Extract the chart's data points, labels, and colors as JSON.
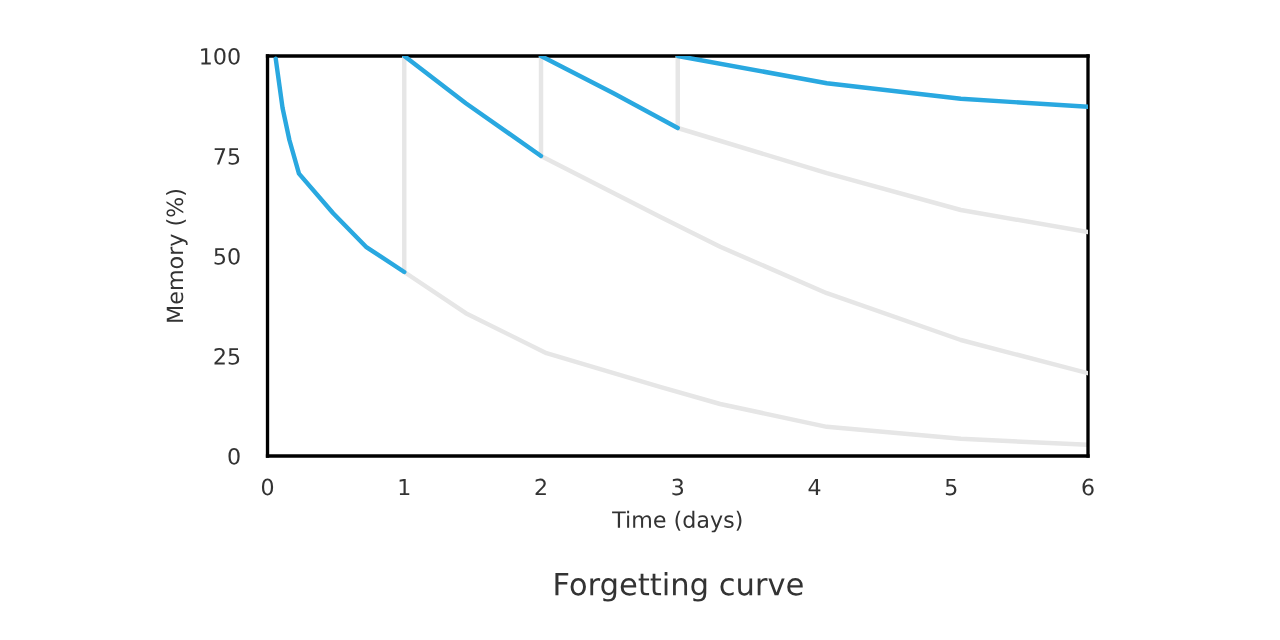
{
  "chart_data": {
    "type": "line",
    "title": "Forgetting curve",
    "xlabel": "Time (days)",
    "ylabel": "Memory (%)",
    "xlim": [
      0,
      6
    ],
    "xticks": [
      0,
      1,
      2,
      3,
      4,
      5,
      6
    ],
    "ylim": [
      0,
      100
    ],
    "yticks": [
      0,
      25,
      50,
      75,
      100
    ],
    "grid": false,
    "marker": "none",
    "line_style": "solid",
    "series": [
      {
        "color": "#e6e6e6",
        "x": [
          1,
          1.45,
          2.04,
          2.87,
          3.31,
          4.09,
          5.07,
          6
        ],
        "values": [
          46,
          35.7,
          25.7,
          17.3,
          13,
          7.3,
          4.3,
          2.8
        ]
      },
      {
        "color": "#e6e6e6",
        "x": [
          2,
          2.87,
          3.31,
          4.09,
          5.07,
          6
        ],
        "values": [
          75,
          59.8,
          52.3,
          40.7,
          29,
          20.7
        ]
      },
      {
        "color": "#e6e6e6",
        "x": [
          3,
          4.09,
          5.07,
          6
        ],
        "values": [
          82,
          70.7,
          61.5,
          56
        ]
      },
      {
        "color": "#e6e6e6",
        "x": [
          1,
          1
        ],
        "values": [
          46,
          100
        ]
      },
      {
        "color": "#e6e6e6",
        "x": [
          2,
          2
        ],
        "values": [
          75,
          100
        ]
      },
      {
        "color": "#e6e6e6",
        "x": [
          3,
          3
        ],
        "values": [
          82,
          100
        ]
      },
      {
        "color": "#29a8e0",
        "x": [
          0.06,
          0.11,
          0.16,
          0.23,
          0.48,
          0.72,
          1
        ],
        "values": [
          99.3,
          87,
          79,
          70.6,
          60.7,
          52.3,
          46
        ]
      },
      {
        "color": "#29a8e0",
        "x": [
          1,
          1.45,
          2
        ],
        "values": [
          100,
          88.2,
          75
        ]
      },
      {
        "color": "#29a8e0",
        "x": [
          2,
          2.53,
          3
        ],
        "values": [
          100,
          90.7,
          82
        ]
      },
      {
        "color": "#29a8e0",
        "x": [
          3,
          4.09,
          5.07,
          6
        ],
        "values": [
          100,
          93.2,
          89.3,
          87.3
        ]
      }
    ]
  }
}
